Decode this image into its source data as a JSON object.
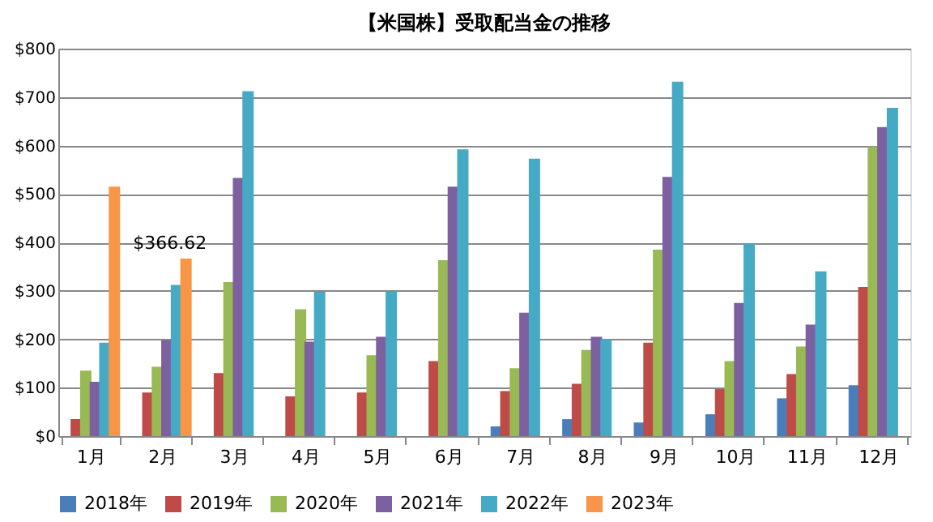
{
  "chart_data": {
    "type": "bar",
    "title": "【米国株】受取配当金の推移",
    "categories": [
      "1月",
      "2月",
      "3月",
      "4月",
      "5月",
      "6月",
      "7月",
      "8月",
      "9月",
      "10月",
      "11月",
      "12月"
    ],
    "series": [
      {
        "name": "2018年",
        "color": "#4a7ebb",
        "values": [
          null,
          null,
          null,
          null,
          null,
          null,
          20,
          35,
          28,
          45,
          78,
          105
        ]
      },
      {
        "name": "2019年",
        "color": "#be4b48",
        "values": [
          35,
          90,
          130,
          82,
          90,
          155,
          93,
          108,
          193,
          97,
          128,
          308
        ]
      },
      {
        "name": "2020年",
        "color": "#98b954",
        "values": [
          135,
          143,
          318,
          262,
          167,
          363,
          140,
          178,
          385,
          155,
          185,
          598
        ]
      },
      {
        "name": "2021年",
        "color": "#7d60a0",
        "values": [
          112,
          198,
          533,
          195,
          205,
          515,
          255,
          205,
          535,
          275,
          230,
          638
        ]
      },
      {
        "name": "2022年",
        "color": "#46aac5",
        "values": [
          193,
          312,
          712,
          298,
          298,
          592,
          573,
          200,
          732,
          398,
          340,
          678
        ]
      },
      {
        "name": "2023年",
        "color": "#f79646",
        "values": [
          515,
          366.62,
          null,
          null,
          null,
          null,
          null,
          null,
          null,
          null,
          null,
          null
        ],
        "value_labels": [
          null,
          "$366.62",
          null,
          null,
          null,
          null,
          null,
          null,
          null,
          null,
          null,
          null
        ]
      }
    ],
    "ylim": [
      0,
      800
    ],
    "yticks": [
      {
        "value": 0,
        "label": "$0"
      },
      {
        "value": 100,
        "label": "$100"
      },
      {
        "value": 200,
        "label": "$200"
      },
      {
        "value": 300,
        "label": "$300"
      },
      {
        "value": 400,
        "label": "$400"
      },
      {
        "value": 500,
        "label": "$500"
      },
      {
        "value": 600,
        "label": "$600"
      },
      {
        "value": 700,
        "label": "$700"
      },
      {
        "value": 800,
        "label": "$800"
      }
    ],
    "grid": "y",
    "legend": "bottom"
  }
}
